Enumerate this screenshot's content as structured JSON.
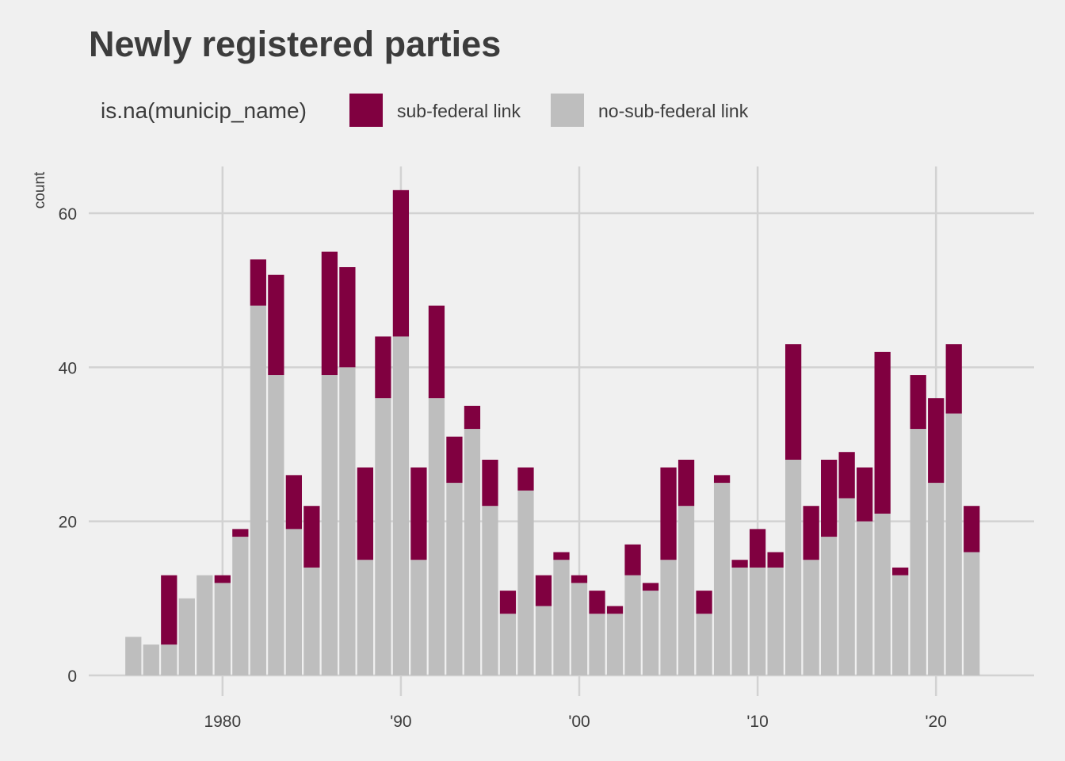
{
  "chart_data": {
    "type": "bar",
    "stacked": true,
    "title": "Newly registered parties",
    "ylabel": "count",
    "xlabel": "",
    "legend": {
      "title": "is.na(municip_name)",
      "position": "top",
      "entries": [
        "sub-federal link",
        "no-sub-federal link"
      ]
    },
    "ylim": [
      0,
      65
    ],
    "xlim": [
      1972.5,
      2025.5
    ],
    "y_ticks": [
      0,
      20,
      40,
      60
    ],
    "y_tick_labels": [
      "0",
      "20",
      "40",
      "60"
    ],
    "x_ticks": [
      1980,
      1990,
      2000,
      2010,
      2020
    ],
    "x_tick_labels": [
      "1980",
      "'90",
      "'00",
      "'10",
      "'20"
    ],
    "grid": true,
    "years": [
      1975,
      1976,
      1977,
      1978,
      1979,
      1980,
      1981,
      1982,
      1983,
      1984,
      1985,
      1986,
      1987,
      1988,
      1989,
      1990,
      1991,
      1992,
      1993,
      1994,
      1995,
      1996,
      1997,
      1998,
      1999,
      2000,
      2001,
      2002,
      2003,
      2004,
      2005,
      2006,
      2007,
      2008,
      2009,
      2010,
      2011,
      2012,
      2013,
      2014,
      2015,
      2016,
      2017,
      2018,
      2019,
      2020,
      2021,
      2022
    ],
    "series": [
      {
        "name": "no-sub-federal link",
        "color": "#BEBEBE",
        "values": [
          5,
          4,
          4,
          10,
          13,
          12,
          18,
          48,
          39,
          19,
          14,
          39,
          40,
          15,
          36,
          44,
          15,
          36,
          25,
          32,
          22,
          8,
          24,
          9,
          15,
          12,
          8,
          8,
          13,
          11,
          15,
          22,
          8,
          25,
          14,
          14,
          14,
          28,
          15,
          18,
          23,
          20,
          21,
          13,
          32,
          25,
          34,
          16
        ]
      },
      {
        "name": "sub-federal link",
        "color": "#800040",
        "values": [
          0,
          0,
          9,
          0,
          0,
          1,
          1,
          6,
          13,
          7,
          8,
          16,
          13,
          12,
          8,
          19,
          12,
          12,
          6,
          3,
          6,
          3,
          3,
          4,
          1,
          1,
          3,
          1,
          4,
          1,
          12,
          6,
          3,
          1,
          1,
          5,
          2,
          15,
          7,
          10,
          6,
          7,
          21,
          1,
          7,
          11,
          9,
          6
        ]
      }
    ]
  }
}
